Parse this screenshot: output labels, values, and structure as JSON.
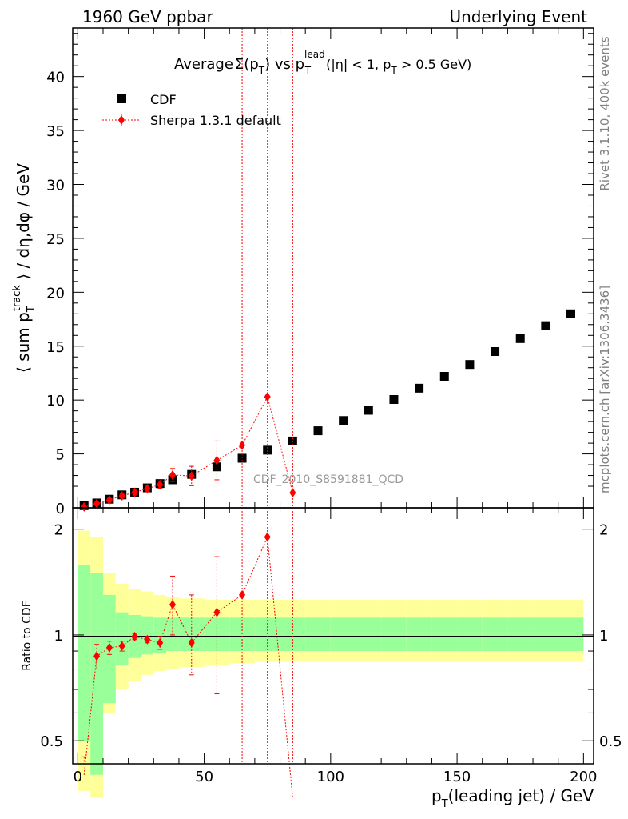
{
  "header": {
    "left": "1960 GeV ppbar",
    "right": "Underlying Event"
  },
  "side": {
    "rivet": "Rivet 3.1.10,  400k events",
    "mcplots": "mcplots.cern.ch [arXiv:1306.3436]"
  },
  "chart_data": {
    "type": "scatter",
    "title": "Average Σ(p_T) vs p_T^lead (|η| < 1, p_T > 0.5 GeV)",
    "title_parts": {
      "average": "Average",
      "sigma": "Σ(p",
      "t1_sub": "T",
      "vs": ") vs p",
      "lead_sup": "lead",
      "t2_sub": "T",
      "rest1": " (|η| < 1, p",
      "t3_sub": "T",
      "rest2": " > 0.5 GeV)"
    },
    "analysis_tag": "CDF_2010_S8591881_QCD",
    "xlabel": "p_T(leading jet) / GeV",
    "xlabel_parts": {
      "p": "p",
      "sub": "T",
      "rest": "(leading jet) / GeV"
    },
    "ylabel": "⟨ sum p_T^track ⟩ / dη,dφ / GeV",
    "ylabel_parts": {
      "a": "⟨ sum p",
      "sub": "T",
      "sup": "track",
      "b": " ⟩ / dη,dφ / GeV"
    },
    "ratio_ylabel": "Ratio to CDF",
    "xlim": [
      -2,
      204
    ],
    "ylim": [
      0,
      44.5
    ],
    "ratio_ylim": [
      0.43,
      2.3
    ],
    "ratio_log": true,
    "x_ticks": [
      0,
      50,
      100,
      150,
      200
    ],
    "y_ticks": [
      0,
      5,
      10,
      15,
      20,
      25,
      30,
      35,
      40
    ],
    "ratio_ticks": [
      0.5,
      1,
      2
    ],
    "legend_position": "top-left",
    "series": [
      {
        "name": "CDF",
        "color": "#000000",
        "marker": "square",
        "x": [
          2.5,
          7.5,
          12.5,
          17.5,
          22.5,
          27.5,
          32.5,
          37.5,
          45,
          55,
          65,
          75,
          85,
          95,
          105,
          115,
          125,
          135,
          145,
          155,
          165,
          175,
          185,
          195
        ],
        "y": [
          0.2,
          0.45,
          0.8,
          1.2,
          1.45,
          1.85,
          2.25,
          2.6,
          3.1,
          3.8,
          4.6,
          5.35,
          6.2,
          7.15,
          8.1,
          9.05,
          10.05,
          11.1,
          12.2,
          13.3,
          14.5,
          15.7,
          16.9,
          18.0
        ]
      },
      {
        "name": "Sherpa 1.3.1 default",
        "color": "#ff0000",
        "marker": "diamond",
        "line": "dotted",
        "x": [
          2.5,
          7.5,
          12.5,
          17.5,
          22.5,
          27.5,
          32.5,
          37.5,
          45,
          55,
          65,
          75,
          85
        ],
        "y": [
          0.08,
          0.4,
          0.73,
          1.11,
          1.44,
          1.78,
          2.15,
          3.05,
          2.95,
          4.4,
          5.8,
          10.3,
          1.4
        ],
        "y_err": [
          0.05,
          0.1,
          0.15,
          0.2,
          0.25,
          0.3,
          0.35,
          0.6,
          0.9,
          1.8,
          45,
          45,
          45
        ]
      }
    ],
    "ratio": {
      "x": [
        2.5,
        7.5,
        12.5,
        17.5,
        22.5,
        27.5,
        32.5,
        37.5,
        45,
        55,
        65,
        75,
        85
      ],
      "y": [
        0.4,
        0.87,
        0.92,
        0.93,
        0.99,
        0.97,
        0.95,
        1.22,
        0.95,
        1.16,
        1.3,
        1.9,
        0.2
      ],
      "err_lo": [
        0.35,
        0.8,
        0.88,
        0.9,
        0.97,
        0.95,
        0.91,
        1.0,
        0.77,
        0.68,
        0.3,
        0.3,
        0.2
      ],
      "err_hi": [
        0.45,
        0.94,
        0.96,
        0.96,
        1.01,
        0.99,
        0.99,
        1.47,
        1.3,
        1.67,
        3,
        3,
        3
      ]
    },
    "bands": {
      "edges": [
        0,
        5,
        10,
        15,
        20,
        25,
        30,
        35,
        40,
        50,
        60,
        70,
        80,
        90,
        100,
        110,
        120,
        130,
        140,
        150,
        160,
        170,
        180,
        190,
        200
      ],
      "green_lo": [
        0.5,
        0.4,
        0.64,
        0.82,
        0.86,
        0.88,
        0.89,
        0.9,
        0.9,
        0.9,
        0.9,
        0.9,
        0.9,
        0.9,
        0.9,
        0.9,
        0.9,
        0.9,
        0.9,
        0.9,
        0.9,
        0.9,
        0.9,
        0.9
      ],
      "green_hi": [
        1.58,
        1.5,
        1.3,
        1.16,
        1.14,
        1.13,
        1.12,
        1.12,
        1.12,
        1.12,
        1.12,
        1.12,
        1.12,
        1.12,
        1.12,
        1.12,
        1.12,
        1.12,
        1.12,
        1.12,
        1.12,
        1.12,
        1.12,
        1.12
      ],
      "yellow_lo": [
        0.36,
        0.3,
        0.6,
        0.7,
        0.74,
        0.77,
        0.79,
        0.8,
        0.81,
        0.82,
        0.83,
        0.84,
        0.84,
        0.84,
        0.84,
        0.84,
        0.84,
        0.84,
        0.84,
        0.84,
        0.84,
        0.84,
        0.84,
        0.84
      ],
      "yellow_hi": [
        1.98,
        1.9,
        1.5,
        1.4,
        1.35,
        1.33,
        1.3,
        1.28,
        1.27,
        1.26,
        1.26,
        1.26,
        1.26,
        1.26,
        1.26,
        1.26,
        1.26,
        1.26,
        1.26,
        1.26,
        1.26,
        1.26,
        1.26,
        1.26
      ],
      "green_color": "#99ff99",
      "yellow_color": "#ffff99"
    }
  }
}
